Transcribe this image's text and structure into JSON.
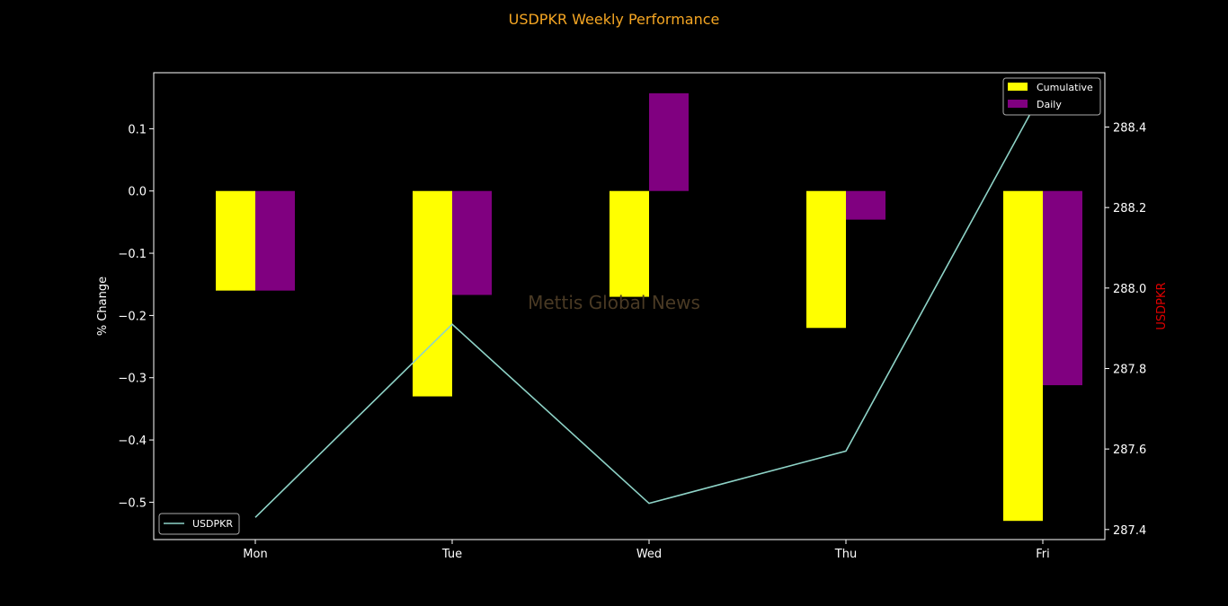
{
  "chart_data": {
    "type": "bar",
    "title": "USDPKR Weekly Performance",
    "watermark": "Mettis Global News",
    "categories": [
      "Mon",
      "Tue",
      "Wed",
      "Thu",
      "Fri"
    ],
    "series": [
      {
        "name": "Cumulative",
        "color": "#ffff00",
        "values": [
          -0.16,
          -0.33,
          -0.17,
          -0.22,
          -0.53
        ]
      },
      {
        "name": "Daily",
        "color": "#800080",
        "values": [
          -0.16,
          -0.167,
          0.157,
          -0.046,
          -0.312
        ]
      }
    ],
    "line_series": {
      "name": "USDPKR",
      "color": "#8ed3c7",
      "axis": "right",
      "values": [
        287.43,
        287.91,
        287.465,
        287.595,
        288.49
      ]
    },
    "ylabel": "% Change",
    "ylabel_right": "USDPKR",
    "ylabel_right_color": "#e00000",
    "ylim": [
      -0.56,
      0.19
    ],
    "ylim_right": [
      287.375,
      288.535
    ],
    "yticks": [
      0.1,
      0.0,
      -0.1,
      -0.2,
      -0.3,
      -0.4,
      -0.5
    ],
    "ytick_labels": [
      "0.1",
      "0.0",
      "−0.1",
      "−0.2",
      "−0.3",
      "−0.4",
      "−0.5"
    ],
    "yticks_right": [
      288.4,
      288.2,
      288.0,
      287.8,
      287.6,
      287.4
    ],
    "ytick_right_labels": [
      "288.4",
      "288.2",
      "288.0",
      "287.8",
      "287.6",
      "287.4"
    ],
    "legend_bars_position": "top-right",
    "legend_line_position": "bottom-left",
    "grid": false
  }
}
